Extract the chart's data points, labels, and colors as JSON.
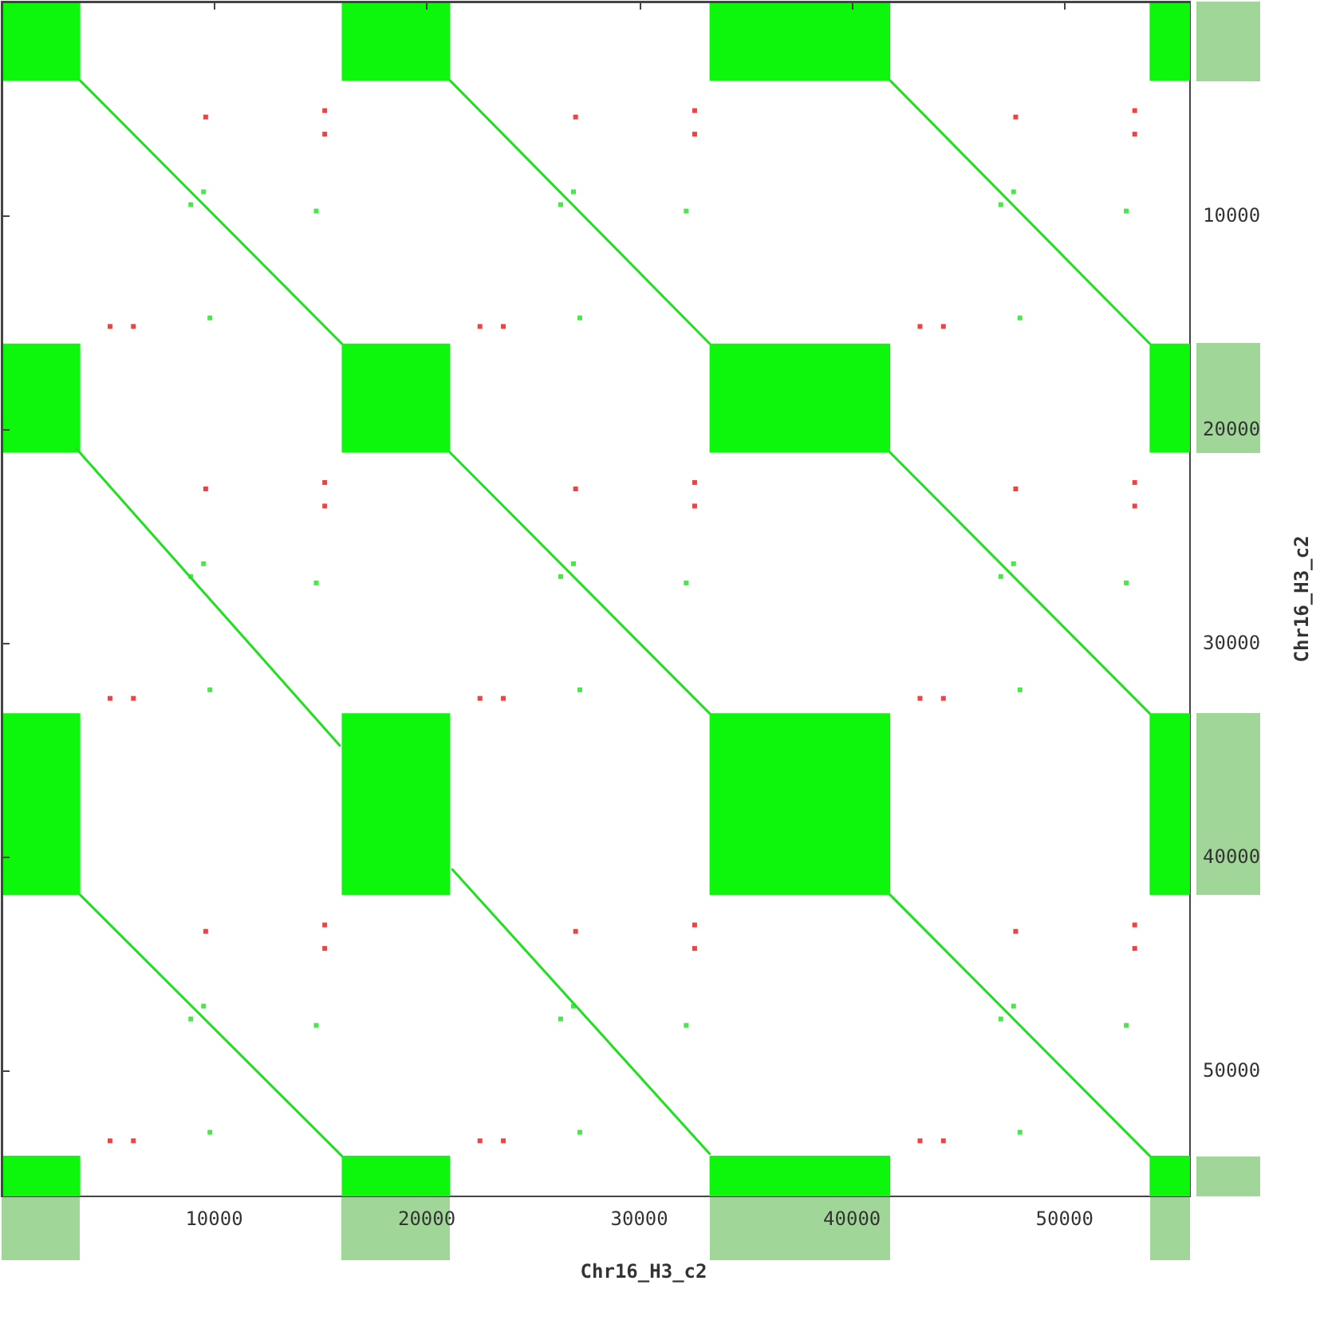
{
  "chart_data": {
    "type": "line",
    "xlabel": "Chr16_H3_c2",
    "ylabel": "Chr16_H3_c2",
    "xlim": [
      0,
      55900
    ],
    "ylim": [
      55900,
      0
    ],
    "xticks": [
      10000,
      20000,
      30000,
      40000,
      50000
    ],
    "yticks": [
      10000,
      20000,
      30000,
      40000,
      50000
    ],
    "grid": false,
    "line_style": "solid",
    "series": [
      {
        "type": "area",
        "color": "#0cf70c",
        "x": [
          0,
          3700
        ],
        "values": [
          null,
          null
        ],
        "lower": [
          0,
          0
        ],
        "upper": [
          3700,
          3700
        ]
      },
      {
        "type": "area",
        "color": "#0cf70c",
        "x": [
          16000,
          21100
        ],
        "values": [
          null,
          null
        ],
        "lower": [
          0,
          0
        ],
        "upper": [
          3700,
          3700
        ]
      },
      {
        "type": "area",
        "color": "#0cf70c",
        "x": [
          33300,
          41800
        ],
        "values": [
          null,
          null
        ],
        "lower": [
          0,
          0
        ],
        "upper": [
          3700,
          3700
        ]
      },
      {
        "type": "area",
        "color": "#0cf70c",
        "x": [
          54000,
          55900
        ],
        "values": [
          null,
          null
        ],
        "lower": [
          0,
          0
        ],
        "upper": [
          3700,
          3700
        ]
      },
      {
        "type": "area",
        "color": "#0cf70c",
        "x": [
          0,
          3700
        ],
        "values": [
          null,
          null
        ],
        "lower": [
          16000,
          16000
        ],
        "upper": [
          21100,
          21100
        ]
      },
      {
        "type": "area",
        "color": "#0cf70c",
        "x": [
          16000,
          21100
        ],
        "values": [
          null,
          null
        ],
        "lower": [
          16000,
          16000
        ],
        "upper": [
          21100,
          21100
        ]
      },
      {
        "type": "area",
        "color": "#0cf70c",
        "x": [
          33300,
          41800
        ],
        "values": [
          null,
          null
        ],
        "lower": [
          16000,
          16000
        ],
        "upper": [
          21100,
          21100
        ]
      },
      {
        "type": "area",
        "color": "#0cf70c",
        "x": [
          54000,
          55900
        ],
        "values": [
          null,
          null
        ],
        "lower": [
          16000,
          16000
        ],
        "upper": [
          21100,
          21100
        ]
      },
      {
        "type": "area",
        "color": "#0cf70c",
        "x": [
          0,
          3700
        ],
        "values": [
          null,
          null
        ],
        "lower": [
          33300,
          33300
        ],
        "upper": [
          41800,
          41800
        ]
      },
      {
        "type": "area",
        "color": "#0cf70c",
        "x": [
          16000,
          21100
        ],
        "values": [
          null,
          null
        ],
        "lower": [
          33300,
          33300
        ],
        "upper": [
          41800,
          41800
        ]
      },
      {
        "type": "area",
        "color": "#0cf70c",
        "x": [
          33300,
          41800
        ],
        "values": [
          null,
          null
        ],
        "lower": [
          33300,
          33300
        ],
        "upper": [
          41800,
          41800
        ]
      },
      {
        "type": "area",
        "color": "#0cf70c",
        "x": [
          54000,
          55900
        ],
        "values": [
          null,
          null
        ],
        "lower": [
          33300,
          33300
        ],
        "upper": [
          41800,
          41800
        ]
      },
      {
        "type": "area",
        "color": "#0cf70c",
        "x": [
          0,
          3700
        ],
        "values": [
          null,
          null
        ],
        "lower": [
          54000,
          54000
        ],
        "upper": [
          55900,
          55900
        ]
      },
      {
        "type": "area",
        "color": "#0cf70c",
        "x": [
          16000,
          21100
        ],
        "values": [
          null,
          null
        ],
        "lower": [
          54000,
          54000
        ],
        "upper": [
          55900,
          55900
        ]
      },
      {
        "type": "area",
        "color": "#0cf70c",
        "x": [
          33300,
          41800
        ],
        "values": [
          null,
          null
        ],
        "lower": [
          54000,
          54000
        ],
        "upper": [
          55900,
          55900
        ]
      },
      {
        "type": "area",
        "color": "#0cf70c",
        "x": [
          54000,
          55900
        ],
        "values": [
          null,
          null
        ],
        "lower": [
          54000,
          54000
        ],
        "upper": [
          55900,
          55900
        ]
      },
      {
        "color": "#1ee01e",
        "x": [
          3700,
          16000
        ],
        "values": [
          3700,
          16000
        ]
      },
      {
        "color": "#1ee01e",
        "x": [
          21100,
          33300
        ],
        "values": [
          3700,
          16000
        ]
      },
      {
        "color": "#1ee01e",
        "x": [
          41800,
          54000
        ],
        "values": [
          3700,
          16000
        ]
      },
      {
        "color": "#1ee01e",
        "x": [
          3500,
          15900
        ],
        "values": [
          20900,
          34800
        ]
      },
      {
        "color": "#1ee01e",
        "x": [
          21100,
          33300
        ],
        "values": [
          21100,
          33300
        ]
      },
      {
        "color": "#1ee01e",
        "x": [
          41800,
          54000
        ],
        "values": [
          21100,
          33300
        ]
      },
      {
        "color": "#1ee01e",
        "x": [
          3700,
          16000
        ],
        "values": [
          41800,
          54000
        ]
      },
      {
        "color": "#1ee01e",
        "x": [
          21200,
          33300
        ],
        "values": [
          40600,
          53900
        ]
      },
      {
        "color": "#1ee01e",
        "x": [
          41800,
          54000
        ],
        "values": [
          41800,
          54000
        ]
      },
      {
        "type": "scatter",
        "marker": "square",
        "color": "#ee1111",
        "x": [
          9600,
          15200,
          15200,
          5100,
          6200,
          27000,
          32600,
          32600,
          22500,
          23600,
          47700,
          53300,
          53300,
          43200,
          44300,
          9600,
          15200,
          15200,
          5100,
          6200,
          27000,
          32600,
          32600,
          22500,
          23600,
          47700,
          53300,
          53300,
          43200,
          44300,
          9600,
          15200,
          15200,
          5100,
          6200,
          27000,
          32600,
          32600,
          22500,
          23600,
          47700,
          53300,
          53300,
          43200,
          44300
        ],
        "values": [
          5400,
          5100,
          6200,
          15200,
          15200,
          5400,
          5100,
          6200,
          15200,
          15200,
          5400,
          5100,
          6200,
          15200,
          15200,
          22800,
          22500,
          23600,
          32600,
          32600,
          22800,
          22500,
          23600,
          32600,
          32600,
          22800,
          22500,
          23600,
          32600,
          32600,
          43500,
          43200,
          44300,
          53300,
          53300,
          43500,
          43200,
          44300,
          53300,
          53300,
          43500,
          43200,
          44300,
          53300,
          53300
        ]
      },
      {
        "type": "scatter",
        "marker": "square",
        "color": "#1ee01e",
        "x": [
          9500,
          8900,
          14800,
          9800,
          26900,
          26300,
          32200,
          27200,
          47600,
          47000,
          52900,
          47900,
          9500,
          8900,
          14800,
          9800,
          26900,
          26300,
          32200,
          27200,
          47600,
          47000,
          52900,
          47900,
          9500,
          8900,
          14800,
          9800,
          26900,
          26300,
          32200,
          27200,
          47600,
          47000,
          52900,
          47900
        ],
        "values": [
          8900,
          9500,
          9800,
          14800,
          8900,
          9500,
          9800,
          14800,
          8900,
          9500,
          9800,
          14800,
          26300,
          26900,
          27200,
          32200,
          26300,
          26900,
          27200,
          32200,
          26300,
          26900,
          27200,
          32200,
          47000,
          47600,
          47900,
          52900,
          47000,
          47600,
          47900,
          52900,
          47000,
          47600,
          47900,
          52900
        ]
      }
    ]
  }
}
